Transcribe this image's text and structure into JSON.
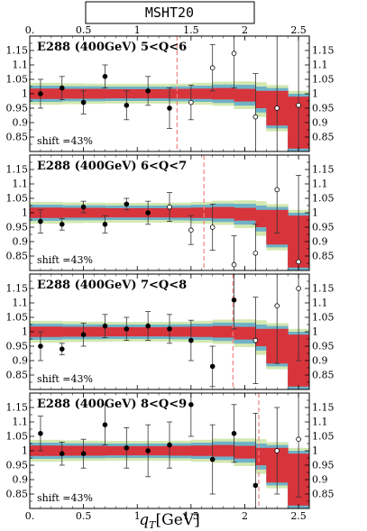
{
  "header": {
    "label": "MSHT20"
  },
  "xaxis": {
    "label_main": "q",
    "label_sub": "T",
    "label_unit": "[GeV]"
  },
  "colors": {
    "band_outer": "#d3e8b0",
    "band_mid": "#6fb2c8",
    "band_inner": "#d8343c",
    "cut_line": "#f08080",
    "point": "#000000"
  },
  "chart_data": [
    {
      "type": "scatter",
      "title": "E288 (400GeV) 5<Q<6",
      "shift_label": "shift =43%",
      "xlim": [
        0,
        2.6
      ],
      "ylim": [
        0.8,
        1.2
      ],
      "xticks": [
        "0.",
        "0.5",
        "1",
        "1.5",
        "2",
        "2.5"
      ],
      "yticks": [
        "0.85",
        "0.9",
        "0.95",
        "1",
        "1.05",
        "1.1",
        "1.15"
      ],
      "cut": 1.37,
      "points": [
        {
          "x": 0.1,
          "y": 1.0,
          "err": 0.05,
          "filled": true
        },
        {
          "x": 0.3,
          "y": 1.02,
          "err": 0.04,
          "filled": true
        },
        {
          "x": 0.5,
          "y": 0.97,
          "err": 0.04,
          "filled": true
        },
        {
          "x": 0.7,
          "y": 1.06,
          "err": 0.04,
          "filled": true
        },
        {
          "x": 0.9,
          "y": 0.96,
          "err": 0.05,
          "filled": true
        },
        {
          "x": 1.1,
          "y": 1.01,
          "err": 0.05,
          "filled": true
        },
        {
          "x": 1.3,
          "y": 0.95,
          "err": 0.07,
          "filled": true
        },
        {
          "x": 1.5,
          "y": 0.97,
          "err": 0.06,
          "filled": false
        },
        {
          "x": 1.7,
          "y": 1.09,
          "err": 0.08,
          "filled": false
        },
        {
          "x": 1.9,
          "y": 1.14,
          "err": 0.12,
          "filled": false
        },
        {
          "x": 2.1,
          "y": 0.92,
          "err": 0.15,
          "filled": false
        },
        {
          "x": 2.3,
          "y": 0.95,
          "err": 0.3,
          "filled": false
        },
        {
          "x": 2.5,
          "y": 0.96,
          "err": 0.3,
          "filled": false
        }
      ]
    },
    {
      "type": "scatter",
      "title": "E288 (400GeV) 6<Q<7",
      "shift_label": "shift =43%",
      "xlim": [
        0,
        2.6
      ],
      "ylim": [
        0.8,
        1.2
      ],
      "xticks": [
        "0.",
        "0.5",
        "1",
        "1.5",
        "2",
        "2.5"
      ],
      "yticks": [
        "0.85",
        "0.9",
        "0.95",
        "1",
        "1.05",
        "1.1",
        "1.15"
      ],
      "cut": 1.62,
      "points": [
        {
          "x": 0.1,
          "y": 0.97,
          "err": 0.04,
          "filled": true
        },
        {
          "x": 0.3,
          "y": 0.96,
          "err": 0.02,
          "filled": true
        },
        {
          "x": 0.5,
          "y": 1.02,
          "err": 0.02,
          "filled": true
        },
        {
          "x": 0.7,
          "y": 0.96,
          "err": 0.03,
          "filled": true
        },
        {
          "x": 0.9,
          "y": 1.03,
          "err": 0.02,
          "filled": true
        },
        {
          "x": 1.1,
          "y": 1.0,
          "err": 0.04,
          "filled": true
        },
        {
          "x": 1.3,
          "y": 1.02,
          "err": 0.05,
          "filled": false
        },
        {
          "x": 1.5,
          "y": 0.94,
          "err": 0.05,
          "filled": false
        },
        {
          "x": 1.7,
          "y": 0.95,
          "err": 0.08,
          "filled": false
        },
        {
          "x": 1.9,
          "y": 0.82,
          "err": 0.1,
          "filled": false
        },
        {
          "x": 2.1,
          "y": 0.86,
          "err": 0.1,
          "filled": false
        },
        {
          "x": 2.3,
          "y": 1.08,
          "err": 0.15,
          "filled": false
        },
        {
          "x": 2.5,
          "y": 0.83,
          "err": 0.3,
          "filled": false
        }
      ]
    },
    {
      "type": "scatter",
      "title": "E288 (400GeV) 7<Q<8",
      "shift_label": "shift =43%",
      "xlim": [
        0,
        2.6
      ],
      "ylim": [
        0.8,
        1.2
      ],
      "xticks": [
        "0.",
        "0.5",
        "1",
        "1.5",
        "2",
        "2.5"
      ],
      "yticks": [
        "0.85",
        "0.9",
        "0.95",
        "1",
        "1.05",
        "1.1",
        "1.15"
      ],
      "cut": 1.89,
      "points": [
        {
          "x": 0.1,
          "y": 0.95,
          "err": 0.05,
          "filled": true
        },
        {
          "x": 0.3,
          "y": 0.94,
          "err": 0.02,
          "filled": true
        },
        {
          "x": 0.5,
          "y": 0.99,
          "err": 0.04,
          "filled": true
        },
        {
          "x": 0.7,
          "y": 1.02,
          "err": 0.04,
          "filled": true
        },
        {
          "x": 0.9,
          "y": 1.01,
          "err": 0.04,
          "filled": true
        },
        {
          "x": 1.1,
          "y": 1.02,
          "err": 0.05,
          "filled": true
        },
        {
          "x": 1.3,
          "y": 1.01,
          "err": 0.05,
          "filled": true
        },
        {
          "x": 1.5,
          "y": 0.97,
          "err": 0.07,
          "filled": true
        },
        {
          "x": 1.7,
          "y": 0.88,
          "err": 0.07,
          "filled": true
        },
        {
          "x": 1.9,
          "y": 1.11,
          "err": 0.1,
          "filled": true
        },
        {
          "x": 2.1,
          "y": 0.97,
          "err": 0.15,
          "filled": false
        },
        {
          "x": 2.3,
          "y": 1.09,
          "err": 0.2,
          "filled": false
        },
        {
          "x": 2.5,
          "y": 1.15,
          "err": 0.25,
          "filled": false
        }
      ]
    },
    {
      "type": "scatter",
      "title": "E288 (400GeV) 8<Q<9",
      "shift_label": "shift =43%",
      "xlim": [
        0,
        2.6
      ],
      "ylim": [
        0.8,
        1.2
      ],
      "xticks": [
        "0.",
        "0.5",
        "1",
        "1.5",
        "2",
        "2.5"
      ],
      "yticks": [
        "0.85",
        "0.9",
        "0.95",
        "1",
        "1.05",
        "1.1",
        "1.15"
      ],
      "cut": 2.13,
      "points": [
        {
          "x": 0.1,
          "y": 1.06,
          "err": 0.06,
          "filled": true
        },
        {
          "x": 0.3,
          "y": 0.99,
          "err": 0.04,
          "filled": true
        },
        {
          "x": 0.5,
          "y": 0.99,
          "err": 0.05,
          "filled": true
        },
        {
          "x": 0.7,
          "y": 1.09,
          "err": 0.07,
          "filled": true
        },
        {
          "x": 0.9,
          "y": 1.01,
          "err": 0.07,
          "filled": true
        },
        {
          "x": 1.1,
          "y": 1.0,
          "err": 0.09,
          "filled": true
        },
        {
          "x": 1.3,
          "y": 1.02,
          "err": 0.08,
          "filled": true
        },
        {
          "x": 1.5,
          "y": 1.16,
          "err": 0.11,
          "filled": true
        },
        {
          "x": 1.7,
          "y": 0.97,
          "err": 0.12,
          "filled": true
        },
        {
          "x": 1.9,
          "y": 1.06,
          "err": 0.1,
          "filled": true
        },
        {
          "x": 2.1,
          "y": 0.88,
          "err": 0.25,
          "filled": true
        },
        {
          "x": 2.3,
          "y": 1.0,
          "err": 0.15,
          "filled": false
        },
        {
          "x": 2.5,
          "y": 1.04,
          "err": 0.2,
          "filled": false
        }
      ]
    }
  ]
}
